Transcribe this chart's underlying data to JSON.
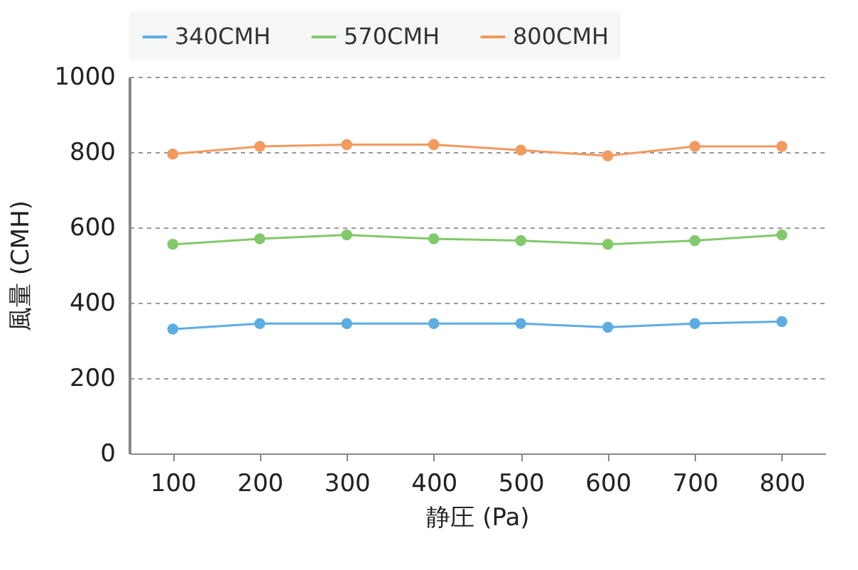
{
  "chart_data": {
    "type": "line",
    "xlabel": "静圧 (Pa)",
    "ylabel": "風量 (CMH)",
    "categories": [
      "100",
      "200",
      "300",
      "400",
      "500",
      "600",
      "700",
      "800"
    ],
    "series": [
      {
        "name": "340CMH",
        "color": "#5dade2",
        "values": [
          330,
          345,
          345,
          345,
          345,
          335,
          345,
          350
        ]
      },
      {
        "name": "570CMH",
        "color": "#82c96a",
        "values": [
          555,
          570,
          580,
          570,
          565,
          555,
          565,
          580
        ]
      },
      {
        "name": "800CMH",
        "color": "#f39a5e",
        "values": [
          795,
          815,
          820,
          820,
          805,
          790,
          815,
          815
        ]
      }
    ],
    "ylim": [
      0,
      1000
    ],
    "yticks": [
      0,
      200,
      400,
      600,
      800,
      1000
    ],
    "grid": "y",
    "legend": "top",
    "marker": "circle",
    "line_style": "solid"
  }
}
